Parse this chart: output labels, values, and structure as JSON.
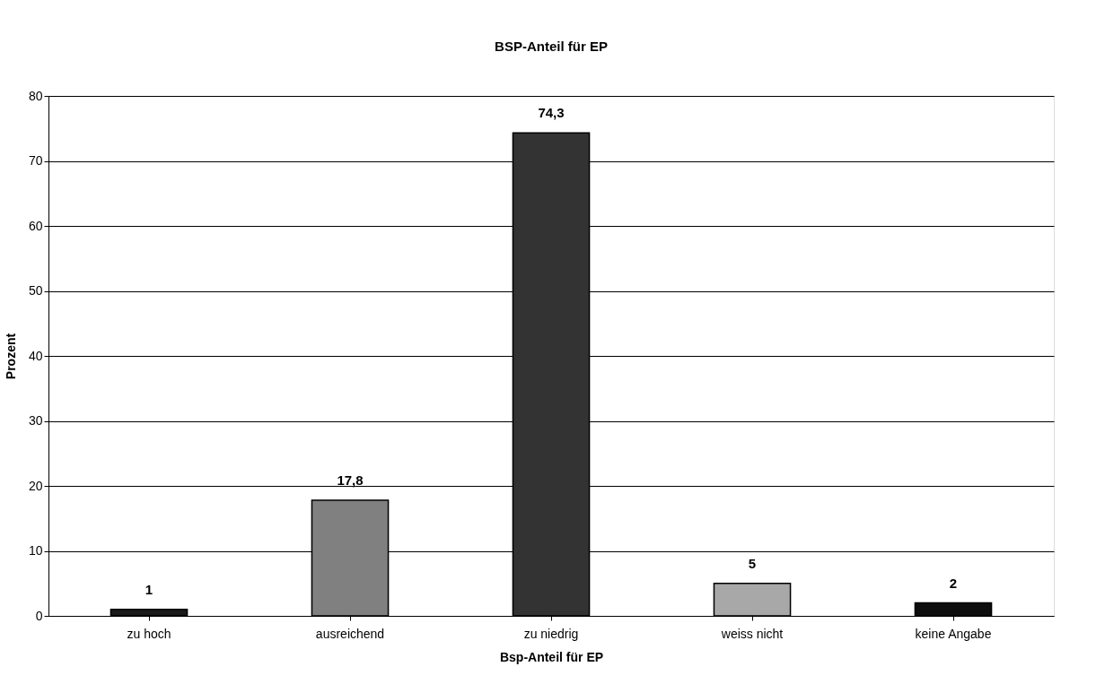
{
  "chart_data": {
    "type": "bar",
    "title": "BSP-Anteil für EP",
    "xlabel": "Bsp-Anteil für EP",
    "ylabel": "Prozent",
    "categories": [
      "zu hoch",
      "ausreichend",
      "zu niedrig",
      "weiss nicht",
      "keine Angabe"
    ],
    "values": [
      1,
      17.8,
      74.3,
      5,
      2
    ],
    "value_labels": [
      "1",
      "17,8",
      "74,3",
      "5",
      "2"
    ],
    "colors": [
      "#1a1a1a",
      "#808080",
      "#333333",
      "#a8a8a8",
      "#0d0d0d"
    ],
    "ylim": [
      0,
      80
    ],
    "yticks": [
      0,
      10,
      20,
      30,
      40,
      50,
      60,
      70,
      80
    ],
    "grid": "y",
    "legend": false
  }
}
